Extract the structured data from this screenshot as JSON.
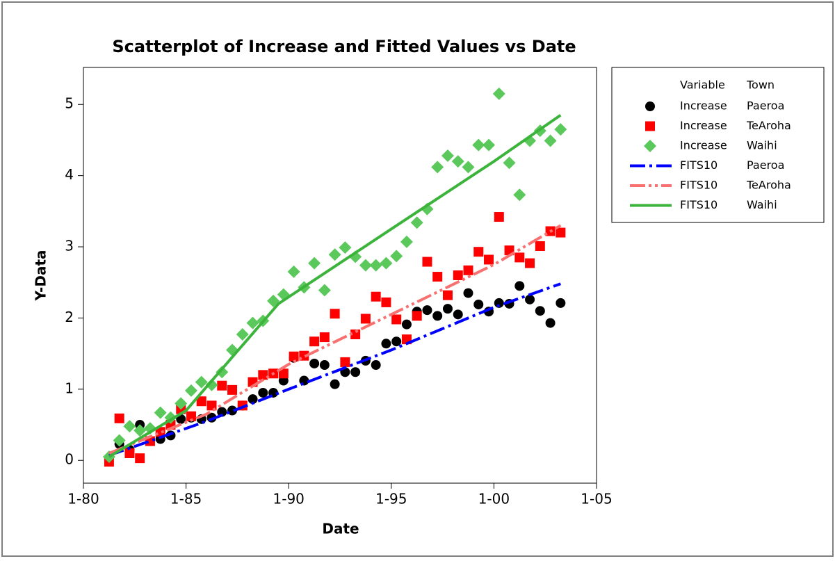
{
  "chart_data": {
    "type": "scatter",
    "title": "Scatterplot of Increase and Fitted Values vs Date",
    "xlabel": "Date",
    "ylabel": "Y-Data",
    "xlim": [
      1980,
      2005
    ],
    "ylim": [
      -0.32,
      5.52
    ],
    "xticks": [
      {
        "value": 1980,
        "label": "1-80"
      },
      {
        "value": 1985,
        "label": "1-85"
      },
      {
        "value": 1990,
        "label": "1-90"
      },
      {
        "value": 1995,
        "label": "1-95"
      },
      {
        "value": 2000,
        "label": "1-00"
      },
      {
        "value": 2005,
        "label": "1-05"
      }
    ],
    "yticks": [
      0,
      1,
      2,
      3,
      4,
      5
    ],
    "legend_headers": [
      "Variable",
      "Town"
    ],
    "legend_position": "right",
    "x": [
      1981.25,
      1981.75,
      1982.25,
      1982.75,
      1983.25,
      1983.75,
      1984.25,
      1984.75,
      1985.25,
      1985.75,
      1986.25,
      1986.75,
      1987.25,
      1987.75,
      1988.25,
      1988.75,
      1989.25,
      1989.75,
      1990.25,
      1990.75,
      1991.25,
      1991.75,
      1992.25,
      1992.75,
      1993.25,
      1993.75,
      1994.25,
      1994.75,
      1995.25,
      1995.75,
      1996.25,
      1996.75,
      1997.25,
      1997.75,
      1998.25,
      1998.75,
      1999.25,
      1999.75,
      2000.25,
      2000.75,
      2001.25,
      2001.75,
      2002.25,
      2002.75,
      2003.25
    ],
    "series": [
      {
        "name": "Increase",
        "town": "Paeroa",
        "color": "#000000",
        "marker": "circle",
        "values": [
          0.03,
          0.23,
          0.15,
          0.5,
          0.28,
          0.3,
          0.35,
          0.58,
          0.6,
          0.58,
          0.6,
          0.68,
          0.7,
          0.77,
          0.86,
          0.95,
          0.95,
          1.12,
          1.44,
          1.12,
          1.36,
          1.34,
          1.07,
          1.24,
          1.24,
          1.4,
          1.34,
          1.64,
          1.67,
          1.91,
          2.09,
          2.11,
          2.03,
          2.13,
          2.05,
          2.35,
          2.19,
          2.09,
          2.21,
          2.2,
          2.45,
          2.26,
          2.1,
          1.93,
          2.21
        ]
      },
      {
        "name": "Increase",
        "town": "TeAroha",
        "color": "#ff0000",
        "marker": "square",
        "values": [
          -0.02,
          0.59,
          0.1,
          0.03,
          0.27,
          0.4,
          0.5,
          0.72,
          0.62,
          0.83,
          0.77,
          1.05,
          0.99,
          0.77,
          1.1,
          1.2,
          1.22,
          1.22,
          1.46,
          1.47,
          1.67,
          1.73,
          2.06,
          1.38,
          1.77,
          1.99,
          2.3,
          2.22,
          1.98,
          1.7,
          2.03,
          2.79,
          2.58,
          2.32,
          2.6,
          2.67,
          2.93,
          2.82,
          3.42,
          2.95,
          2.85,
          2.77,
          3.01,
          3.22,
          3.2
        ]
      },
      {
        "name": "Increase",
        "town": "Waihi",
        "color": "#5ac85a",
        "marker": "diamond",
        "values": [
          0.05,
          0.28,
          0.48,
          0.42,
          0.45,
          0.67,
          0.6,
          0.8,
          0.98,
          1.1,
          1.06,
          1.24,
          1.55,
          1.77,
          1.93,
          1.96,
          2.24,
          2.33,
          2.65,
          2.43,
          2.77,
          2.39,
          2.89,
          2.99,
          2.86,
          2.74,
          2.74,
          2.77,
          2.87,
          3.07,
          3.34,
          3.53,
          4.12,
          4.28,
          4.2,
          4.12,
          4.43,
          4.43,
          5.15,
          4.18,
          3.73,
          4.49,
          4.63,
          4.49,
          4.65
        ]
      },
      {
        "name": "FITS10",
        "town": "Paeroa",
        "color": "#0000ff",
        "marker": "line",
        "dash": "22 6 4 6",
        "x": [
          1981.25,
          1986,
          1990,
          1995,
          2000,
          2003.25
        ],
        "values": [
          0.07,
          0.55,
          1.0,
          1.55,
          2.15,
          2.48
        ]
      },
      {
        "name": "FITS10",
        "town": "TeAroha",
        "color": "#f87070",
        "marker": "line",
        "dash": "22 5 4 5 4 5",
        "x": [
          1981.25,
          1986,
          1990,
          1995,
          2000,
          2003.25
        ],
        "values": [
          0.1,
          0.65,
          1.35,
          2.05,
          2.75,
          3.3
        ]
      },
      {
        "name": "FITS10",
        "town": "Waihi",
        "color": "#3cb43c",
        "marker": "line",
        "dash": "none",
        "x": [
          1981.25,
          1985,
          1989.5,
          1995,
          2000,
          2003.25
        ],
        "values": [
          0.05,
          0.7,
          2.2,
          3.25,
          4.2,
          4.85
        ]
      }
    ]
  }
}
